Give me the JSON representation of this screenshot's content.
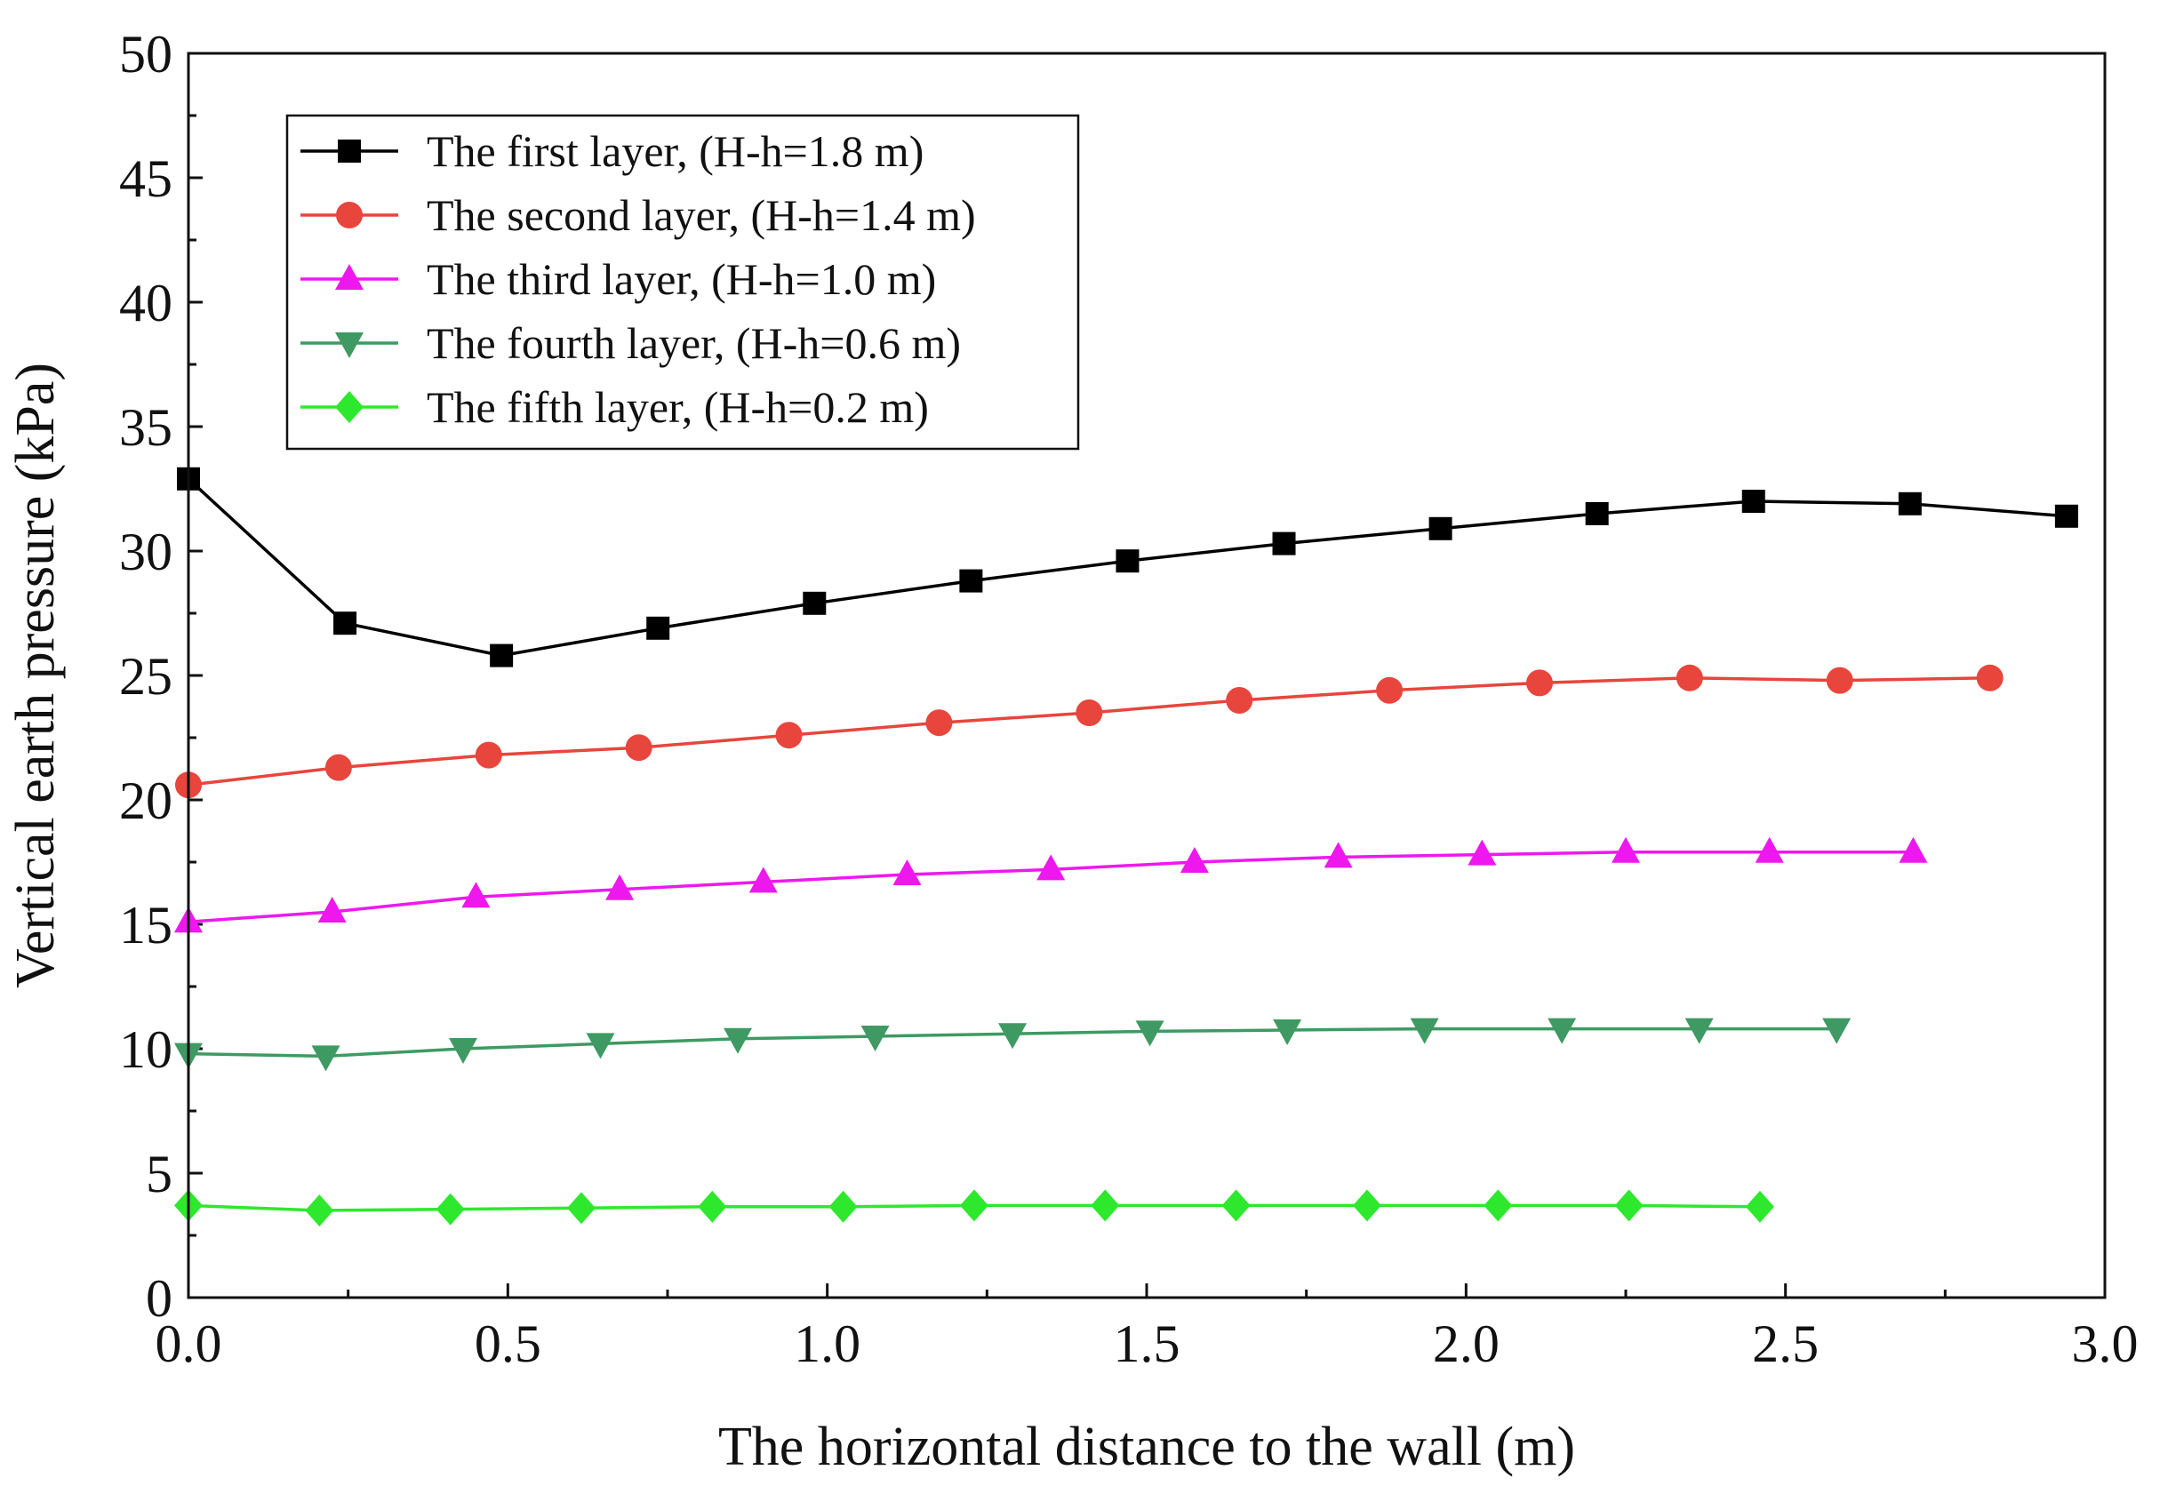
{
  "chart_data": {
    "type": "line",
    "title": "",
    "xlabel": "The horizontal distance to the wall (m)",
    "ylabel": "Vertical earth pressure (kPa)",
    "xlim": [
      0,
      3.0
    ],
    "ylim": [
      0,
      50
    ],
    "xticks": [
      0,
      0.5,
      1.0,
      1.5,
      2.0,
      2.5,
      3.0
    ],
    "xtick_labels": [
      "0.0",
      "0.5",
      "1.0",
      "1.5",
      "2.0",
      "2.5",
      "3.0"
    ],
    "yticks": [
      0,
      5,
      10,
      15,
      20,
      25,
      30,
      35,
      40,
      45,
      50
    ],
    "ytick_labels": [
      "0",
      "5",
      "10",
      "15",
      "20",
      "25",
      "30",
      "35",
      "40",
      "45",
      "50"
    ],
    "grid": false,
    "legend_position": "top-left",
    "series": [
      {
        "name": "The first layer, (H-h=1.8 m)",
        "color": "#000000",
        "marker": "square",
        "x": [
          0.0,
          0.245,
          0.49,
          0.735,
          0.98,
          1.225,
          1.47,
          1.715,
          1.96,
          2.205,
          2.45,
          2.695,
          2.94
        ],
        "y": [
          32.9,
          27.1,
          25.8,
          26.9,
          27.9,
          28.8,
          29.6,
          30.3,
          30.9,
          31.5,
          32.0,
          31.9,
          31.4
        ]
      },
      {
        "name": "The second layer, (H-h=1.4 m)",
        "color": "#e8453c",
        "marker": "circle",
        "x": [
          0.0,
          0.235,
          0.47,
          0.705,
          0.94,
          1.175,
          1.41,
          1.645,
          1.88,
          2.115,
          2.35,
          2.585,
          2.82
        ],
        "y": [
          20.6,
          21.3,
          21.8,
          22.1,
          22.6,
          23.1,
          23.5,
          24.0,
          24.4,
          24.7,
          24.9,
          24.8,
          24.9
        ]
      },
      {
        "name": "The third layer, (H-h=1.0 m)",
        "color": "#ee18ee",
        "marker": "triangle-up",
        "x": [
          0.0,
          0.225,
          0.45,
          0.675,
          0.9,
          1.125,
          1.35,
          1.575,
          1.8,
          2.025,
          2.25,
          2.475,
          2.7
        ],
        "y": [
          15.1,
          15.5,
          16.1,
          16.4,
          16.7,
          17.0,
          17.2,
          17.5,
          17.7,
          17.8,
          17.9,
          17.9,
          17.9
        ]
      },
      {
        "name": "The fourth layer, (H-h=0.6 m)",
        "color": "#3e9a62",
        "marker": "triangle-down",
        "x": [
          0.0,
          0.215,
          0.43,
          0.645,
          0.86,
          1.075,
          1.29,
          1.505,
          1.72,
          1.935,
          2.15,
          2.365,
          2.58
        ],
        "y": [
          9.8,
          9.7,
          10.0,
          10.2,
          10.4,
          10.5,
          10.6,
          10.7,
          10.75,
          10.8,
          10.8,
          10.8,
          10.8
        ]
      },
      {
        "name": "The fifth layer, (H-h=0.2 m)",
        "color": "#2ee82e",
        "marker": "diamond",
        "x": [
          0.0,
          0.205,
          0.41,
          0.615,
          0.82,
          1.025,
          1.23,
          1.435,
          1.64,
          1.845,
          2.05,
          2.255,
          2.46
        ],
        "y": [
          3.7,
          3.5,
          3.55,
          3.6,
          3.65,
          3.65,
          3.7,
          3.7,
          3.7,
          3.7,
          3.7,
          3.7,
          3.65
        ]
      }
    ]
  }
}
